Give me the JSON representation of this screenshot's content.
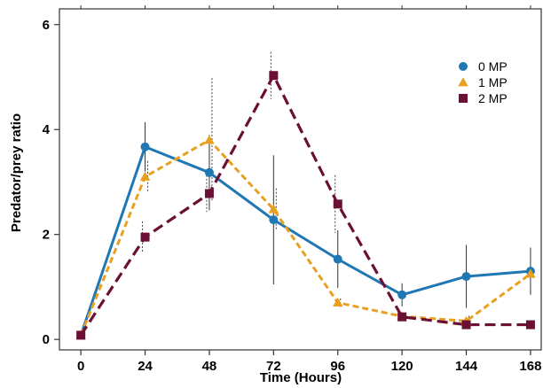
{
  "chart_data": {
    "type": "line",
    "title": "",
    "xlabel": "Time (Hours)",
    "ylabel": "Predator/prey ratio",
    "x": [
      0,
      24,
      48,
      72,
      96,
      120,
      144,
      168
    ],
    "xticks": [
      "0",
      "24",
      "48",
      "72",
      "96",
      "120",
      "144",
      "168"
    ],
    "yticks": [
      "0",
      "2",
      "4",
      "6"
    ],
    "xlim": [
      -8,
      172
    ],
    "ylim": [
      -0.2,
      6.3
    ],
    "grid": false,
    "legend_position": "top-right",
    "series": [
      {
        "name": "0 MP",
        "color": "#1f77b4",
        "marker": "circle",
        "line_style": "solid",
        "values": [
          0.08,
          3.67,
          3.18,
          2.28,
          1.53,
          0.85,
          1.2,
          1.3
        ],
        "error": [
          0.0,
          0.47,
          0.72,
          1.23,
          0.55,
          0.22,
          0.6,
          0.45
        ]
      },
      {
        "name": "1 MP",
        "color": "#e8a020",
        "marker": "triangle",
        "line_style": "dashed",
        "values": [
          0.08,
          3.1,
          3.8,
          2.48,
          0.7,
          0.44,
          0.35,
          1.25
        ],
        "error": [
          0.0,
          0.3,
          1.18,
          0.4,
          0.08,
          0.05,
          0.1,
          0.08
        ]
      },
      {
        "name": "2 MP",
        "color": "#6b0f35",
        "marker": "square",
        "line_style": "dashed",
        "values": [
          0.08,
          1.95,
          2.78,
          5.03,
          2.58,
          0.43,
          0.28,
          0.28
        ],
        "error": [
          0.0,
          0.3,
          0.35,
          0.45,
          0.55,
          0.05,
          0.05,
          0.05
        ]
      }
    ]
  }
}
